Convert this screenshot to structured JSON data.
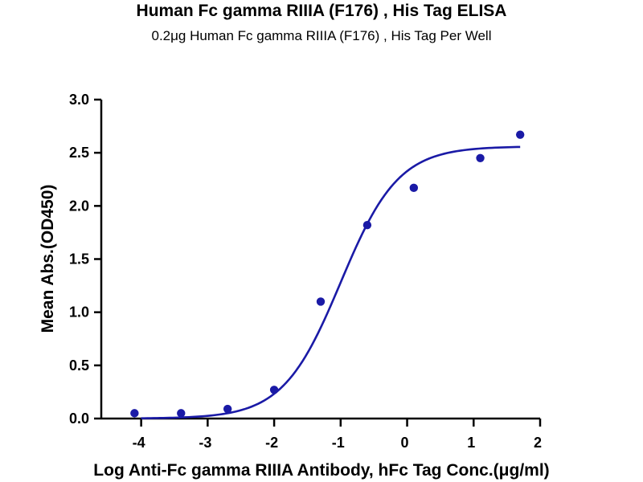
{
  "chart_data": {
    "type": "scatter",
    "title": "Human Fc gamma RIIIA (F176) , His Tag ELISA",
    "subtitle": "0.2μg Human Fc gamma RIIIA (F176) , His Tag Per Well",
    "xlabel": "Log Anti-Fc gamma RIIIA Antibody, hFc Tag Conc.(μg/ml)",
    "ylabel": "Mean Abs.(OD450)",
    "xlim": [
      -4.6,
      2
    ],
    "ylim": [
      0,
      3.0
    ],
    "x_ticks": [
      "-4",
      "-3",
      "-2",
      "-1",
      "0",
      "1",
      "2"
    ],
    "y_ticks": [
      "0.0",
      "0.5",
      "1.0",
      "1.5",
      "2.0",
      "2.5",
      "3.0"
    ],
    "grid": false,
    "points": {
      "x": [
        -4.1,
        -3.4,
        -2.7,
        -2.0,
        -1.3,
        -0.6,
        0.1,
        1.1,
        1.7
      ],
      "y": [
        0.05,
        0.05,
        0.09,
        0.27,
        1.1,
        1.82,
        2.17,
        2.45,
        2.67
      ]
    },
    "fit_curve": {
      "model": "4PL",
      "bottom": 0.0,
      "top": 2.56,
      "logEC50": -1.0,
      "hill_slope": 1.0,
      "x_range": [
        -4.0,
        1.7
      ]
    },
    "colors": {
      "series": "#1a1aa6",
      "axis": "#000000"
    }
  }
}
